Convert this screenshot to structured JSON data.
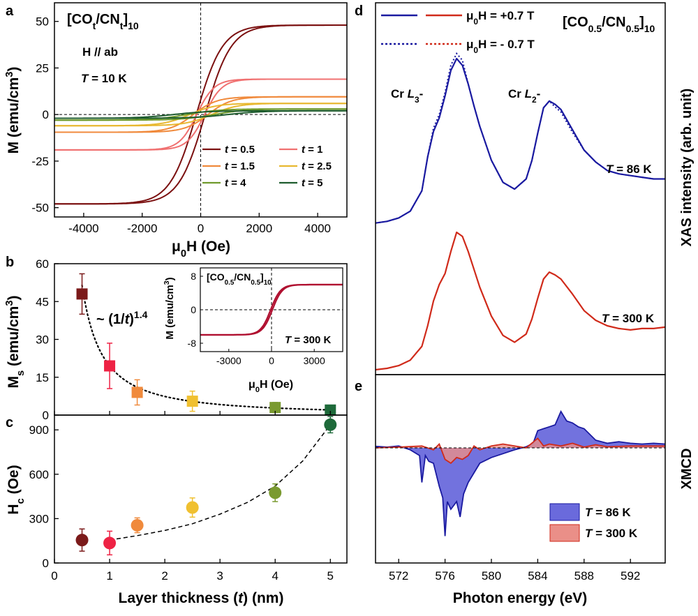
{
  "chart_data": [
    {
      "panel": "a",
      "type": "line",
      "title": "[CO_t/CN_t]_10",
      "annotations": [
        "H // ab",
        "T = 10 K"
      ],
      "xlabel": "μ0H (Oe)",
      "ylabel": "M (emu/cm3)",
      "xlim": [
        -5000,
        5000
      ],
      "ylim": [
        -55,
        60
      ],
      "xticks": [
        -4000,
        -2000,
        0,
        2000,
        4000
      ],
      "yticks": [
        -50,
        -25,
        0,
        25,
        50
      ],
      "legend_position": "lower-right",
      "series": [
        {
          "name": "t = 0.5",
          "legend": "0.5",
          "color": "#7b1010",
          "ms": 48,
          "hc": 150,
          "w": 900
        },
        {
          "name": "t = 1",
          "legend": "1",
          "color": "#f07070",
          "ms": 19,
          "hc": 135,
          "w": 600
        },
        {
          "name": "t = 1.5",
          "legend": "1.5",
          "color": "#f08a3c",
          "ms": 9.5,
          "hc": 250,
          "w": 800
        },
        {
          "name": "t = 2.5",
          "legend": "2.5",
          "color": "#e8b830",
          "ms": 6,
          "hc": 375,
          "w": 900
        },
        {
          "name": "t = 4",
          "legend": "4",
          "color": "#6f9a2c",
          "ms": 3,
          "hc": 475,
          "w": 1100
        },
        {
          "name": "t = 5",
          "legend": "5",
          "color": "#1e5c2e",
          "ms": 2,
          "hc": 930,
          "w": 1200
        }
      ]
    },
    {
      "panel": "b",
      "type": "scatter",
      "ylabel": "Ms (emu/cm3)",
      "ylim": [
        0,
        60
      ],
      "yticks": [
        0,
        15,
        30,
        45,
        60
      ],
      "fit_label": "~ (1/t)1.4",
      "fit": {
        "a": 19.5,
        "exponent": 1.4
      },
      "x": [
        0.5,
        1,
        1.5,
        2.5,
        4,
        5
      ],
      "y": [
        48,
        19.5,
        9,
        5.5,
        3,
        2
      ],
      "err": [
        8,
        9,
        5,
        4,
        2,
        1.5
      ],
      "colors": [
        "#7b1a1a",
        "#ee2244",
        "#f08a3c",
        "#f0c030",
        "#7a9a30",
        "#1e6a3a"
      ],
      "inset": {
        "title": "[CO0.5/CN0.5]10",
        "annotation": "T = 300 K",
        "xlabel": "μ0H (Oe)",
        "ylabel": "M (emu/cm3)",
        "xlim": [
          -5000,
          5000
        ],
        "ylim": [
          -10,
          10
        ],
        "xticks": [
          -3000,
          0,
          3000
        ],
        "yticks": [
          -8,
          0,
          8
        ],
        "ms": 6,
        "hc": 60,
        "w": 700,
        "color": "#b01030"
      }
    },
    {
      "panel": "c",
      "type": "scatter",
      "xlabel": "Layer thickness (t) (nm)",
      "ylabel": "Hc (Oe)",
      "xlim": [
        0,
        5.3
      ],
      "ylim": [
        0,
        1000
      ],
      "xticks": [
        0,
        1,
        2,
        3,
        4,
        5
      ],
      "yticks": [
        0,
        300,
        600,
        900
      ],
      "x": [
        0.5,
        1,
        1.5,
        2.5,
        4,
        5
      ],
      "y": [
        155,
        135,
        255,
        375,
        475,
        935
      ],
      "err": [
        75,
        80,
        50,
        65,
        60,
        55
      ],
      "colors": [
        "#7b1a1a",
        "#ee2244",
        "#f08a3c",
        "#f0c030",
        "#7a9a30",
        "#1e6a3a"
      ],
      "fit": {
        "x": [
          1,
          1.5,
          2,
          2.5,
          3,
          3.5,
          4,
          4.5,
          5
        ],
        "y": [
          155,
          185,
          220,
          265,
          330,
          410,
          520,
          690,
          935
        ]
      }
    },
    {
      "panel": "d",
      "type": "line",
      "title": "[CO0.5/CN0.5]10",
      "ylabel": "XAS intensity (arb. unit)",
      "legend": [
        {
          "label": "μ0H = +0.7 T",
          "style": "solid"
        },
        {
          "label": "μ0H = - 0.7 T",
          "style": "dotted"
        }
      ],
      "peak_labels": [
        "Cr L3-",
        "Cr L2-"
      ],
      "series": [
        {
          "name": "T = 86 K",
          "color": "#1a1aa0",
          "x": [
            570,
            571,
            572,
            573,
            574,
            574.5,
            575,
            575.5,
            576,
            576.5,
            577,
            577.5,
            578,
            578.5,
            579,
            580,
            581,
            582,
            583,
            583.5,
            584,
            584.5,
            585,
            585.5,
            586,
            587,
            588,
            589,
            590,
            591,
            592,
            593,
            594,
            595
          ],
          "y": [
            0.03,
            0.04,
            0.06,
            0.1,
            0.22,
            0.42,
            0.57,
            0.65,
            0.78,
            0.93,
            1.0,
            0.96,
            0.85,
            0.72,
            0.6,
            0.4,
            0.27,
            0.23,
            0.29,
            0.4,
            0.56,
            0.71,
            0.75,
            0.73,
            0.7,
            0.58,
            0.46,
            0.39,
            0.34,
            0.32,
            0.31,
            0.3,
            0.29,
            0.29
          ]
        },
        {
          "name": "T = 300 K",
          "color": "#d02a1a",
          "x": [
            570,
            571,
            572,
            573,
            574,
            574.5,
            575,
            575.5,
            576,
            576.5,
            577,
            577.5,
            578,
            578.5,
            579,
            580,
            581,
            582,
            583,
            583.5,
            584,
            584.5,
            585,
            585.5,
            586,
            587,
            588,
            589,
            590,
            591,
            592,
            593,
            594,
            595
          ],
          "y": [
            0.0,
            0.01,
            0.03,
            0.07,
            0.17,
            0.32,
            0.5,
            0.62,
            0.7,
            0.86,
            1.0,
            0.97,
            0.86,
            0.73,
            0.6,
            0.39,
            0.25,
            0.2,
            0.26,
            0.37,
            0.52,
            0.66,
            0.71,
            0.69,
            0.66,
            0.55,
            0.43,
            0.36,
            0.32,
            0.3,
            0.29,
            0.3,
            0.3,
            0.31
          ]
        }
      ]
    },
    {
      "panel": "e",
      "type": "area",
      "ylabel": "XMCD",
      "xlabel": "Photon energy (eV)",
      "xlim": [
        570,
        595
      ],
      "xticks": [
        572,
        576,
        580,
        584,
        588,
        592
      ],
      "legend_position": "lower-right",
      "series": [
        {
          "name": "T = 86 K",
          "fill": "#6a6adc",
          "line": "#1a1aa0",
          "x": [
            570,
            571,
            572,
            573,
            573.8,
            574,
            574.3,
            574.6,
            575,
            575.5,
            575.8,
            576,
            576.2,
            576.5,
            577,
            577.3,
            577.6,
            578,
            579,
            580,
            581,
            582,
            583,
            583.6,
            584,
            584.5,
            585,
            585.5,
            586,
            586.5,
            587,
            587.5,
            588,
            589,
            590,
            591,
            592,
            593,
            594,
            595
          ],
          "y": [
            0.04,
            0.02,
            0.05,
            -0.05,
            -0.2,
            -0.9,
            -0.2,
            -0.35,
            -0.4,
            -1.0,
            -1.3,
            -2.3,
            -1.4,
            -1.6,
            -1.4,
            -1.8,
            -1.2,
            -0.9,
            -0.4,
            -0.25,
            -0.15,
            -0.05,
            0.03,
            0.12,
            0.45,
            0.5,
            0.55,
            0.6,
            0.95,
            0.7,
            0.65,
            0.55,
            0.5,
            0.2,
            0.12,
            0.16,
            0.12,
            0.1,
            0.12,
            0.1
          ]
        },
        {
          "name": "T = 300 K",
          "fill": "#ea8f88",
          "line": "#d02a1a",
          "x": [
            570,
            572,
            574,
            575,
            575.5,
            576,
            576.5,
            577,
            577.5,
            578,
            578.5,
            579,
            580,
            581,
            582,
            583,
            584,
            584.5,
            585,
            586,
            587,
            588,
            589,
            590,
            592,
            595
          ],
          "y": [
            0.0,
            0.02,
            0.05,
            -0.05,
            0.1,
            -0.3,
            -0.4,
            -0.25,
            -0.3,
            -0.2,
            0.05,
            -0.05,
            0.05,
            0.1,
            0.05,
            0.0,
            0.25,
            0.05,
            0.1,
            0.05,
            0.12,
            0.02,
            0.08,
            0.03,
            0.05,
            0.05
          ]
        }
      ]
    }
  ],
  "labels": {
    "a": "a",
    "b": "b",
    "c": "c",
    "d": "d",
    "e": "e"
  }
}
